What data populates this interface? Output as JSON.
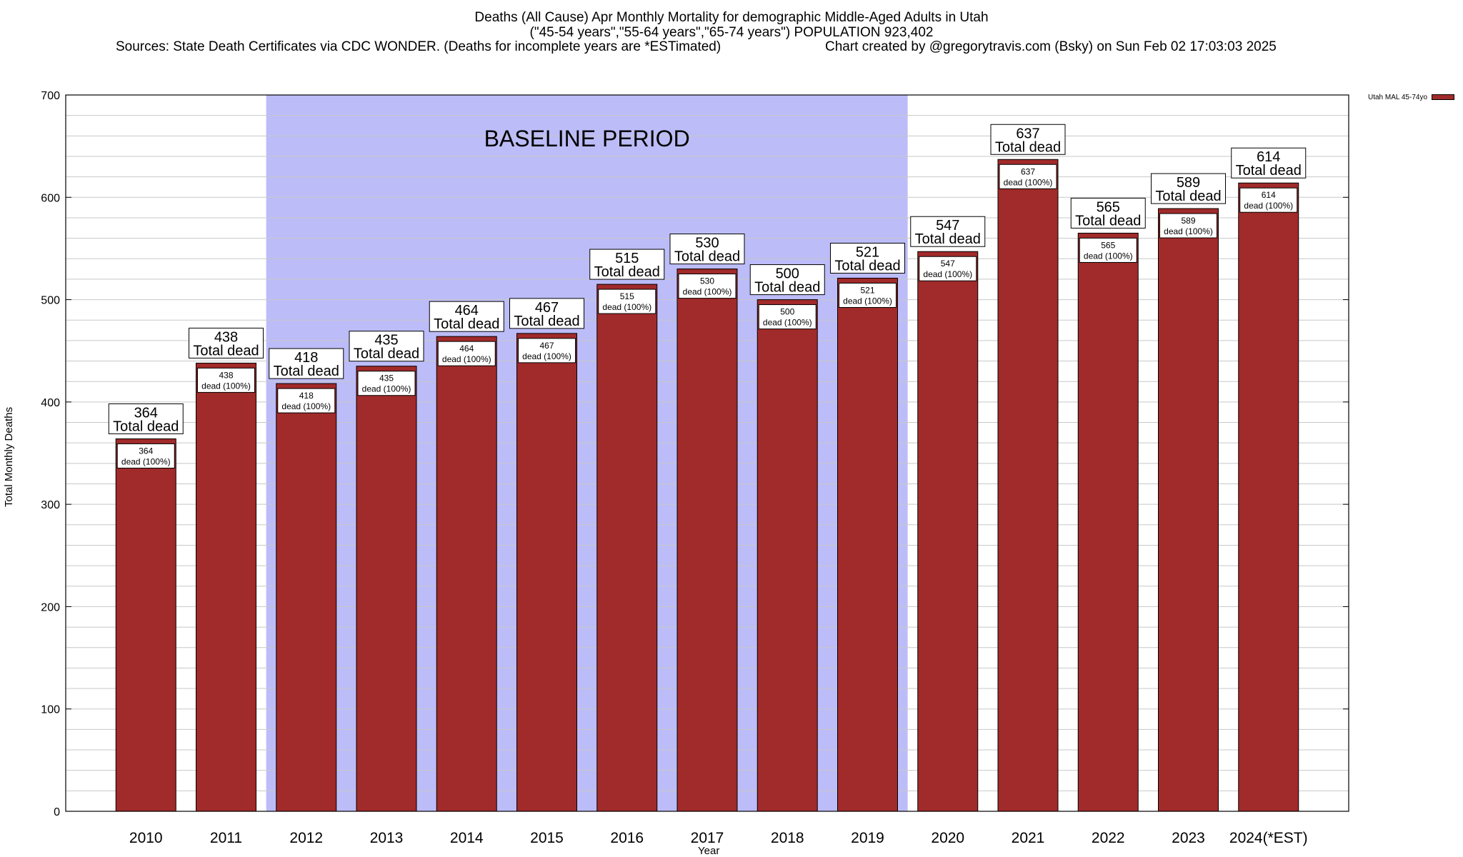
{
  "title": {
    "line1": "Deaths (All Cause) Apr Monthly Mortality for demographic Middle-Aged Adults in Utah",
    "line2": "(\"45-54 years\",\"55-64 years\",\"65-74 years\") POPULATION 923,402",
    "line3_sources": "Sources: State Death Certificates via CDC WONDER. (Deaths for incomplete years are *ESTimated)",
    "line3_credit": "Chart created by @gregorytravis.com (Bsky) on Sun Feb 02 17:03:03 2025"
  },
  "colors": {
    "bar": "#a12a2a",
    "baseline_band": "#bcbcf8",
    "grid": "#c8c8c8"
  },
  "chart_data": {
    "type": "bar",
    "categories": [
      "2010",
      "2011",
      "2012",
      "2013",
      "2014",
      "2015",
      "2016",
      "2017",
      "2018",
      "2019",
      "2020",
      "2021",
      "2022",
      "2023",
      "2024(*EST)"
    ],
    "series": [
      {
        "name": "Utah MAL 45-74yo",
        "values": [
          364,
          438,
          418,
          435,
          464,
          467,
          515,
          530,
          500,
          521,
          547,
          637,
          565,
          589,
          614
        ]
      }
    ],
    "xlabel": "Year",
    "ylabel": "Total Monthly Deaths",
    "ylim": [
      0,
      700
    ],
    "yticks": [
      0,
      100,
      200,
      300,
      400,
      500,
      600,
      700
    ],
    "grid": true,
    "legend": "top-right",
    "baseline": {
      "label": "BASELINE PERIOD",
      "from": "2012",
      "to": "2019"
    },
    "outer_label_suffix": "Total dead",
    "inner_label_suffix": "dead (100%)"
  }
}
